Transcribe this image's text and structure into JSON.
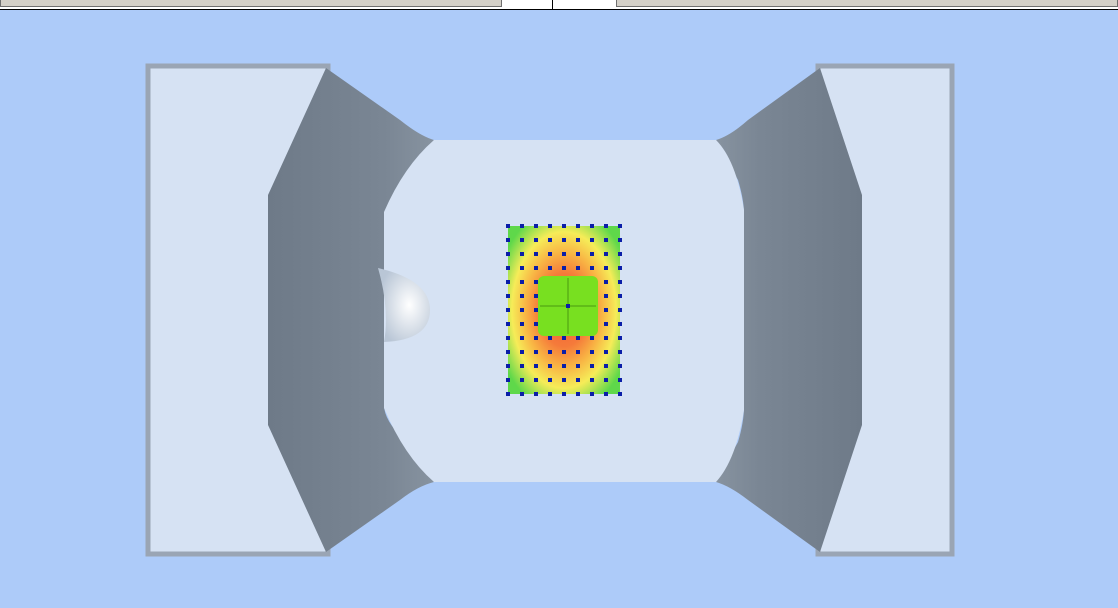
{
  "window": {
    "toolbar_segments": [
      "toolbar-field-left",
      "toolbar-field-middle",
      "toolbar-field-right"
    ]
  },
  "viewport": {
    "background": "#adcbf9",
    "model": {
      "pad_color": "#d6e2f3",
      "pad_border": "#9aa5b4",
      "wall_color": "#76828f",
      "floor_color": "#d6e2f3"
    },
    "heatmap": {
      "grid_cols": 9,
      "grid_rows": 13,
      "marker_color": "#0a1ea8",
      "core_color": "#78e020",
      "colors": {
        "hot": "#f56a3a",
        "warm": "#f8b040",
        "mid": "#f5f05a",
        "cool": "#6fe04a"
      }
    }
  }
}
